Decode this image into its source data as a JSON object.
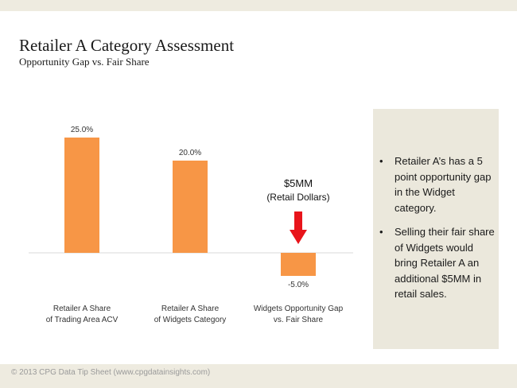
{
  "title": "Retailer A Category Assessment",
  "subtitle": "Opportunity Gap vs. Fair Share",
  "footer": "© 2013 CPG Data Tip Sheet (www.cpgdatainsights.com)",
  "colors": {
    "bar": "#f79646",
    "arrow": "#e8141b",
    "panel": "#ebe8dc",
    "band": "#eeebe0"
  },
  "chart_data": {
    "type": "bar",
    "categories": [
      [
        "Retailer A Share",
        "of Trading Area ACV"
      ],
      [
        "Retailer A Share",
        "of Widgets Category"
      ],
      [
        "Widgets Opportunity Gap",
        "vs. Fair Share"
      ]
    ],
    "values": [
      25.0,
      20.0,
      -5.0
    ],
    "data_labels": [
      "25.0%",
      "20.0%",
      "-5.0%"
    ],
    "ylim": [
      -5,
      25
    ],
    "grid": false,
    "annotation": {
      "lines": [
        "$5MM",
        "(Retail Dollars)"
      ],
      "category_index": 2,
      "icon": "arrow-down-icon"
    }
  },
  "panel": {
    "bullets": [
      "Retailer A’s has a 5 point opportunity gap in the Widget category.",
      "Selling their fair share of Widgets would bring Retailer A an additional $5MM in retail sales."
    ],
    "bullet_symbol": "•"
  }
}
